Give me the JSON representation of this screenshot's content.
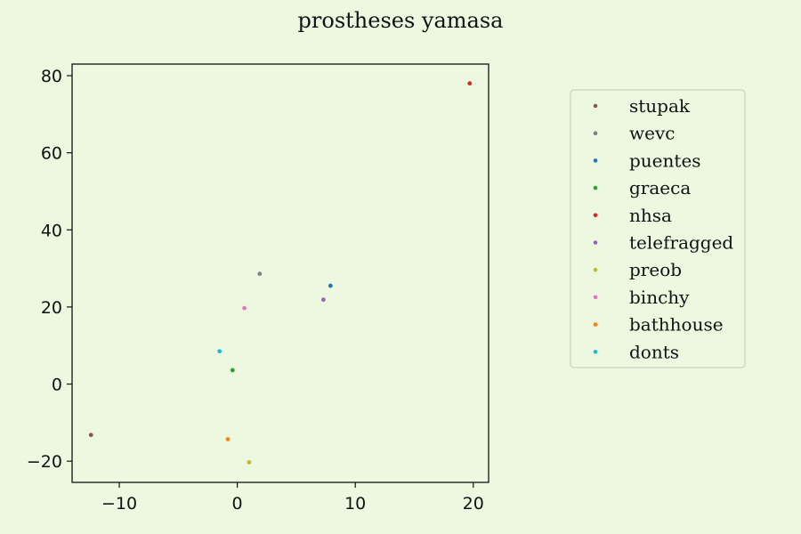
{
  "chart_data": {
    "type": "scatter",
    "title": "prostheses yamasa",
    "xlabel": "",
    "ylabel": "",
    "xlim": [
      -14,
      21.3
    ],
    "ylim": [
      -25.5,
      83
    ],
    "xticks": [
      -10,
      0,
      10,
      20
    ],
    "yticks": [
      -20,
      0,
      20,
      40,
      60,
      80
    ],
    "xtick_labels": [
      "−10",
      "0",
      "10",
      "20"
    ],
    "ytick_labels": [
      "−20",
      "0",
      "20",
      "40",
      "60",
      "80"
    ],
    "grid": false,
    "legend_position": "right",
    "background_color": "#edf8e1",
    "series": [
      {
        "name": "stupak",
        "color": "#8c564b",
        "x": -12.4,
        "y": -13.2
      },
      {
        "name": "wevc",
        "color": "#7f7f7f",
        "x": 1.9,
        "y": 28.6
      },
      {
        "name": "puentes",
        "color": "#1f77b4",
        "x": 7.9,
        "y": 25.5
      },
      {
        "name": "graeca",
        "color": "#2ca02c",
        "x": -0.4,
        "y": 3.6
      },
      {
        "name": "nhsa",
        "color": "#d62728",
        "x": 19.7,
        "y": 78.0
      },
      {
        "name": "telefragged",
        "color": "#9467bd",
        "x": 7.3,
        "y": 21.9
      },
      {
        "name": "preob",
        "color": "#bcbd22",
        "x": 1.0,
        "y": -20.3
      },
      {
        "name": "binchy",
        "color": "#e377c2",
        "x": 0.6,
        "y": 19.7
      },
      {
        "name": "bathhouse",
        "color": "#ff7f0e",
        "x": -0.8,
        "y": -14.3
      },
      {
        "name": "donts",
        "color": "#17becf",
        "x": -1.5,
        "y": 8.5
      }
    ]
  }
}
